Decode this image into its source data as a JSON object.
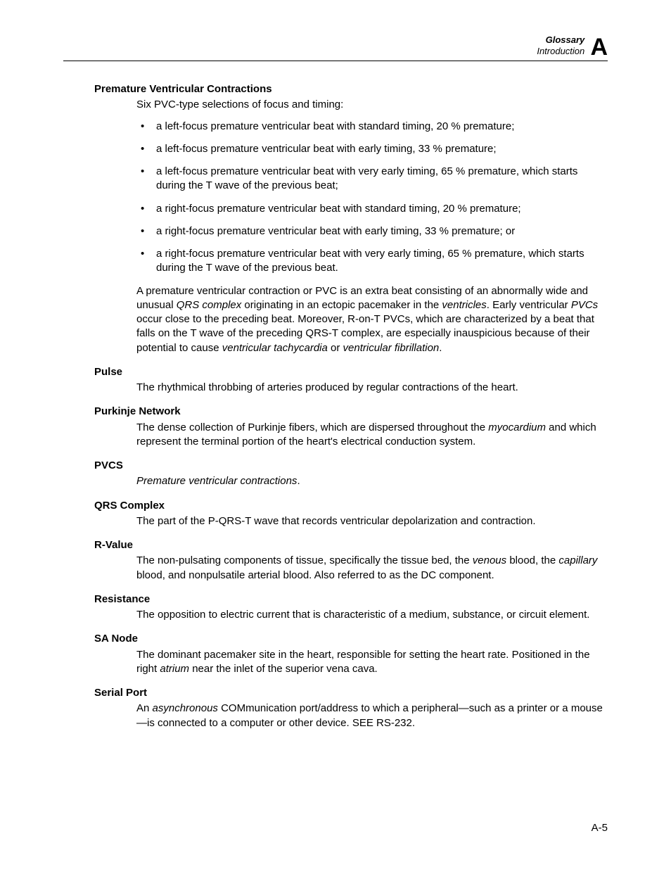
{
  "header": {
    "line1": "Glossary",
    "line2": "Introduction",
    "badge": "A"
  },
  "entries": [
    {
      "title": "Premature Ventricular Contractions",
      "intro": "Six PVC-type selections of focus and timing:",
      "bullets": [
        "a left-focus premature ventricular beat with standard timing, 20 % premature;",
        "a left-focus premature ventricular beat with early timing, 33 % premature;",
        "a left-focus premature ventricular beat with very early timing, 65 % premature, which starts during the T wave of the previous beat;",
        "a right-focus premature ventricular beat with standard timing, 20 % premature;",
        "a right-focus premature ventricular beat with early timing, 33 % premature; or",
        "a right-focus premature ventricular beat with very early timing, 65 % premature, which starts during the T wave of the previous beat."
      ],
      "after_html": "A premature ventricular contraction or PVC is an extra beat consisting of an abnormally wide and unusual <em>QRS complex</em> originating in an ectopic pacemaker in the <em>ventricles</em>. Early ventricular <em>PVCs</em> occur close to the preceding beat. Moreover, R-on-T PVCs, which are characterized by a beat that falls on the T wave of the preceding QRS-T complex, are especially inauspicious because of their potential to cause <em>ventricular tachycardia</em> or <em>ventricular fibrillation</em>."
    },
    {
      "title": "Pulse",
      "body_html": "The rhythmical throbbing of arteries produced by regular contractions of the heart."
    },
    {
      "title": "Purkinje Network",
      "body_html": "The dense collection of Purkinje fibers, which are dispersed throughout the <em>myocardium</em> and which represent the terminal portion of the heart's electrical conduction system."
    },
    {
      "title": "PVCS",
      "body_html": "<em>Premature ventricular contractions</em>."
    },
    {
      "title": "QRS Complex",
      "body_html": "The part of the P-QRS-T wave that records ventricular depolarization and contraction."
    },
    {
      "title": "R-Value",
      "body_html": "The non-pulsating components of tissue, specifically the tissue bed, the <em>venous</em> blood, the <em>capillary</em> blood, and nonpulsatile arterial blood. Also referred to as the DC component."
    },
    {
      "title": "Resistance",
      "body_html": "The opposition to electric current that is characteristic of a medium, substance, or circuit element."
    },
    {
      "title": "SA Node",
      "body_html": "The dominant pacemaker site in the heart, responsible for setting the heart rate. Positioned in the right <em>atrium</em> near the inlet of the superior vena cava."
    },
    {
      "title": "Serial Port",
      "body_html": "An <em>asynchronous</em> COMmunication port/address to which a peripheral—such as a printer or a mouse—is connected to a computer or other device. SEE RS-232."
    }
  ],
  "footer": "A-5"
}
